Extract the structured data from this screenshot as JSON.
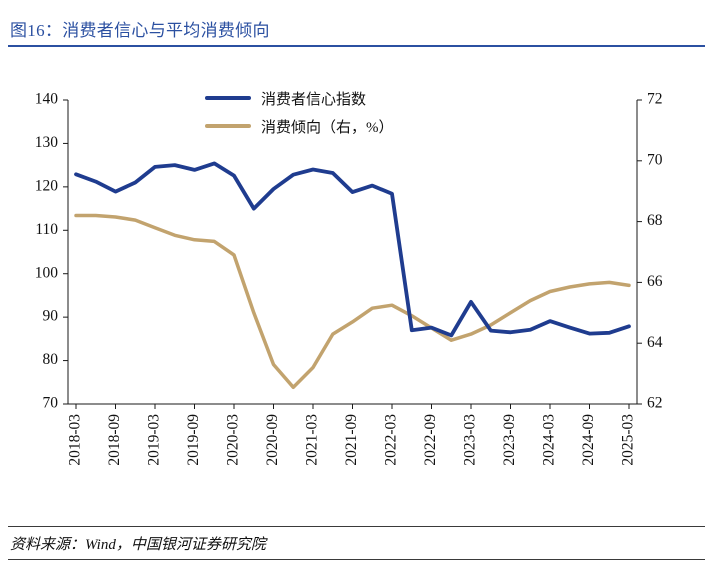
{
  "figure": {
    "title": "图16：消费者信心与平均消费倾向",
    "source": "资料来源：Wind，中国银河证券研究院"
  },
  "colors": {
    "title_blue": "#2B50A1",
    "confidence_blue": "#1F3C8F",
    "propensity_tan": "#C2A36E",
    "axis": "#1a1a1a",
    "footer_rule": "#3a3a3a"
  },
  "chart_data": {
    "type": "line",
    "title": "消费者信心与平均消费倾向",
    "grid": false,
    "legend_position": "top-center",
    "categories": [
      "2018-03",
      "2018-06",
      "2018-09",
      "2018-12",
      "2019-03",
      "2019-06",
      "2019-09",
      "2019-12",
      "2020-03",
      "2020-06",
      "2020-09",
      "2020-12",
      "2021-03",
      "2021-06",
      "2021-09",
      "2021-12",
      "2022-03",
      "2022-06",
      "2022-09",
      "2022-12",
      "2023-03",
      "2023-06",
      "2023-09",
      "2023-12",
      "2024-03",
      "2024-06",
      "2024-09",
      "2024-12",
      "2025-03"
    ],
    "x_tick_labels": [
      "2018-03",
      "2018-09",
      "2019-03",
      "2019-09",
      "2020-03",
      "2020-09",
      "2021-03",
      "2021-09",
      "2022-03",
      "2022-09",
      "2023-03",
      "2023-09",
      "2024-03",
      "2024-09",
      "2025-03"
    ],
    "left_axis": {
      "min": 70,
      "max": 140,
      "ticks": [
        70,
        80,
        90,
        100,
        110,
        120,
        130,
        140
      ]
    },
    "right_axis": {
      "min": 62,
      "max": 72,
      "ticks": [
        62,
        64,
        66,
        68,
        70,
        72
      ]
    },
    "series": [
      {
        "name": "消费者信心指数",
        "axis": "left",
        "color": "#1F3C8F",
        "width": 3.8,
        "values": [
          122.9,
          121.2,
          118.9,
          121.0,
          124.6,
          125.0,
          123.9,
          125.4,
          122.6,
          115.0,
          119.5,
          122.8,
          124.0,
          123.2,
          118.8,
          120.3,
          118.4,
          87.0,
          87.6,
          85.8,
          93.5,
          86.9,
          86.5,
          87.1,
          89.1,
          87.6,
          86.2,
          86.4,
          87.9
        ]
      },
      {
        "name": "消费倾向（右，%）",
        "axis": "right",
        "color": "#C2A36E",
        "width": 3.5,
        "values": [
          68.2,
          68.2,
          68.15,
          68.05,
          67.8,
          67.55,
          67.4,
          67.35,
          66.9,
          65.0,
          63.3,
          62.55,
          63.2,
          64.3,
          64.7,
          65.15,
          65.25,
          64.9,
          64.5,
          64.1,
          64.3,
          64.6,
          65.0,
          65.4,
          65.7,
          65.85,
          65.95,
          66.0,
          65.9
        ]
      }
    ]
  }
}
